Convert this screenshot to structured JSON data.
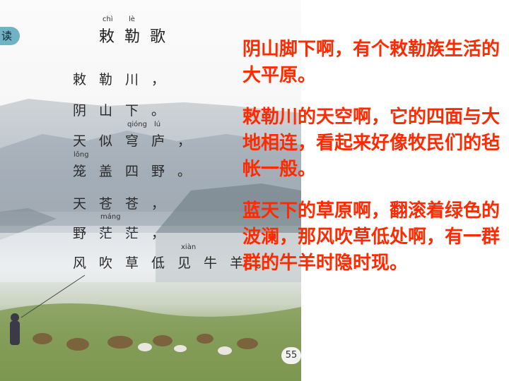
{
  "textbook": {
    "badge": "读",
    "title": "敕勒歌",
    "title_pinyin": [
      "chì",
      "lè"
    ],
    "lines": [
      "敕勒川，",
      "阴山下。",
      "天似穹庐，",
      "笼盖四野。",
      "天苍苍，",
      "野茫茫，",
      "风吹草低见牛羊。"
    ],
    "pinyin_notes": {
      "qiong_lu": [
        "qióng",
        "lú"
      ],
      "long": "lǒng",
      "mang": "máng",
      "xian": "xiàn"
    },
    "page_number": "55"
  },
  "explanation": {
    "paragraphs": [
      "阴山脚下啊，有个敕勒族生活的大平原。",
      "敕勒川的天空啊，它的四面与大地相连，看起来好像牧民们的毡帐一般。",
      "蓝天下的草原啊，翻滚着绿色的波澜，那风吹草低处啊，有一群群的牛羊时隐时现。"
    ]
  }
}
